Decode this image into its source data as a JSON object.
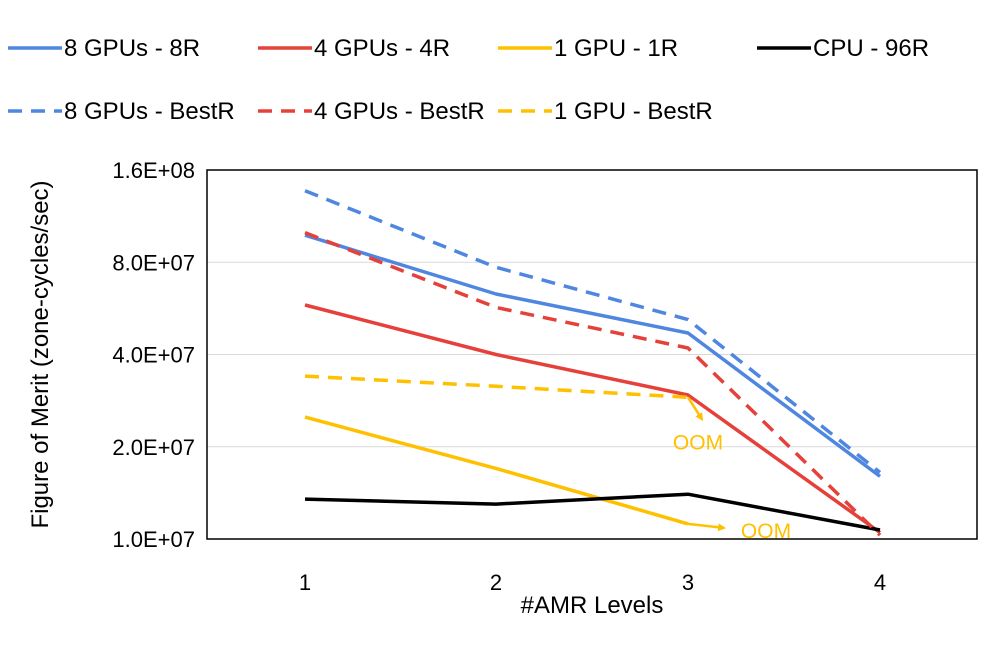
{
  "chart_data": {
    "type": "line",
    "title": "",
    "xlabel": "#AMR Levels",
    "ylabel": "Figure of Merit (zone-cycles/sec)",
    "x": [
      1,
      2,
      3,
      4
    ],
    "y_scale": "log2",
    "ylim": [
      10000000,
      160000000
    ],
    "yticks": [
      {
        "value": 10000000,
        "label": "1.0E+07"
      },
      {
        "value": 20000000,
        "label": "2.0E+07"
      },
      {
        "value": 40000000,
        "label": "4.0E+07"
      },
      {
        "value": 80000000,
        "label": "8.0E+07"
      },
      {
        "value": 160000000,
        "label": "1.6E+08"
      }
    ],
    "xticks": [
      "1",
      "2",
      "3",
      "4"
    ],
    "grid": "horizontal",
    "legend_position": "top",
    "series": [
      {
        "name": "8 GPUs - 8R",
        "color": "#4f86e0",
        "dash": "solid",
        "values": [
          98000000,
          63000000,
          47000000,
          16000000
        ]
      },
      {
        "name": "4 GPUs - 4R",
        "color": "#e5413a",
        "dash": "solid",
        "values": [
          58000000,
          40000000,
          29500000,
          10500000
        ]
      },
      {
        "name": "1 GPU - 1R",
        "color": "#ffc000",
        "dash": "solid",
        "values": [
          25000000,
          17000000,
          11200000,
          null
        ]
      },
      {
        "name": "CPU - 96R",
        "color": "#000000",
        "dash": "solid",
        "values": [
          13500000,
          13000000,
          14000000,
          10700000
        ]
      },
      {
        "name": "8 GPUs - BestR",
        "color": "#4f86e0",
        "dash": "dashed",
        "values": [
          137000000,
          77000000,
          52000000,
          16500000
        ]
      },
      {
        "name": "4 GPUs - BestR",
        "color": "#e5413a",
        "dash": "dashed",
        "values": [
          100000000,
          57000000,
          42000000,
          10300000
        ]
      },
      {
        "name": "1 GPU - BestR",
        "color": "#ffc000",
        "dash": "dashed",
        "values": [
          34000000,
          31500000,
          29000000,
          null
        ]
      }
    ],
    "annotations": [
      {
        "text": "OOM",
        "color": "#ffc000"
      },
      {
        "text": "OOM",
        "color": "#ffc000"
      }
    ]
  }
}
